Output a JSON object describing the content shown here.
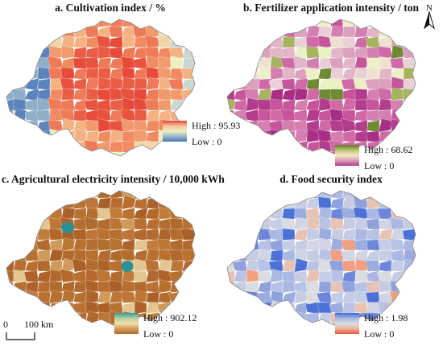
{
  "panels": [
    {
      "title": "a. Cultivation index / %",
      "legend_high": "High : 95.93",
      "legend_low": "Low : 0",
      "ramp": [
        "#e8433a",
        "#f5c49a",
        "#e9f0c6",
        "#9db7c8",
        "#4372b5"
      ],
      "palette": [
        "#e8533f",
        "#ef7a57",
        "#f19b6d",
        "#e64a3a",
        "#f4b283",
        "#f2d6a8",
        "#eef0c4",
        "#c9d7d3",
        "#8faec7",
        "#5b84bd",
        "#e95d45",
        "#f08a60"
      ]
    },
    {
      "title": "b. Fertilizer application intensity / ton",
      "legend_high": "High : 68.62",
      "legend_low": "Low : 0",
      "ramp": [
        "#5a7a2a",
        "#b8c272",
        "#f2e9c4",
        "#d89fb7",
        "#b3388c"
      ],
      "palette": [
        "#c7559b",
        "#d57fb0",
        "#b43c8c",
        "#e3b5c9",
        "#efe0cf",
        "#ecf0c5",
        "#cf6aa6",
        "#e9d0d6",
        "#a82f85",
        "#dba0bd",
        "#6e8a33",
        "#a7b45f"
      ]
    },
    {
      "title": "c. Agricultural electricity intensity / 10,000 kWh",
      "legend_high": "High : 902.12",
      "legend_low": "Low : 0",
      "ramp": [
        "#2e9aa0",
        "#b7cf9e",
        "#f0dfa8",
        "#d49a5a",
        "#b06a2c"
      ],
      "palette": [
        "#b4692c",
        "#b86e30",
        "#bd7636",
        "#ad6329",
        "#c17c3a",
        "#b16b2f",
        "#cf9a5a",
        "#b36d2e",
        "#aa6027",
        "#ba7233",
        "#e3c68f",
        "#b8702f"
      ]
    },
    {
      "title": "d. Food security index",
      "legend_high": "High : 1.98",
      "legend_low": "Low : 0",
      "ramp": [
        "#3f6bd6",
        "#a8b6e0",
        "#dadce2",
        "#f0b49d",
        "#e8533f"
      ],
      "palette": [
        "#aab8e3",
        "#8fa2de",
        "#c5cde6",
        "#dadce2",
        "#6d86d9",
        "#b7c2e4",
        "#d0d4e3",
        "#4c72d8",
        "#9cacdf",
        "#e7c3b3",
        "#f0a080",
        "#c6cde3"
      ]
    }
  ],
  "scale_bar": {
    "zero": "0",
    "distance": "100 km"
  },
  "north_arrow": {
    "label": "N"
  }
}
